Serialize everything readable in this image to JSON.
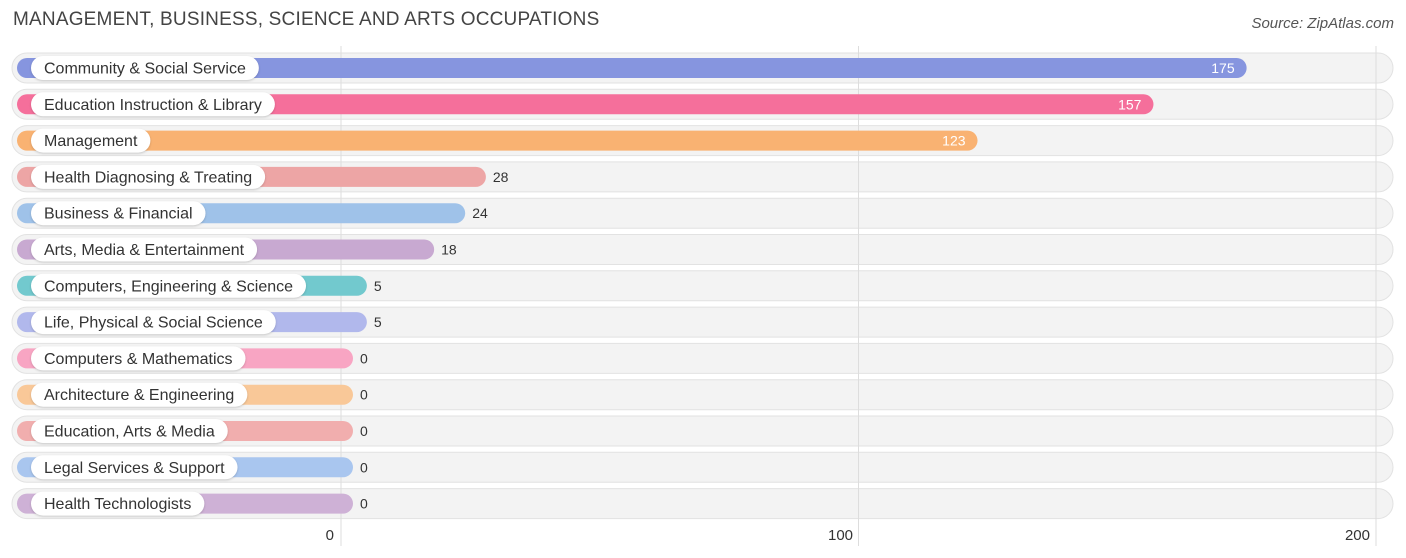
{
  "header": {
    "title": "MANAGEMENT, BUSINESS, SCIENCE AND ARTS OCCUPATIONS",
    "source": "Source: ZipAtlas.com"
  },
  "chart_data": {
    "type": "bar",
    "orientation": "horizontal",
    "categories": [
      "Community & Social Service",
      "Education Instruction & Library",
      "Management",
      "Health Diagnosing & Treating",
      "Business & Financial",
      "Arts, Media & Entertainment",
      "Computers, Engineering & Science",
      "Life, Physical & Social Science",
      "Computers & Mathematics",
      "Architecture & Engineering",
      "Education, Arts & Media",
      "Legal Services & Support",
      "Health Technologists"
    ],
    "values": [
      175,
      157,
      123,
      28,
      24,
      18,
      5,
      5,
      0,
      0,
      0,
      0,
      0
    ],
    "colors": [
      "#8695df",
      "#f56f9b",
      "#f9b272",
      "#eda5a5",
      "#9fc2e9",
      "#c8a9d1",
      "#72c9ce",
      "#b1b8ec",
      "#f8a5c3",
      "#f9c898",
      "#f1aeae",
      "#a9c6ef",
      "#ceb1d6"
    ],
    "xlim": [
      0,
      200
    ],
    "xticks": [
      0,
      100,
      200
    ],
    "grid": true
  }
}
